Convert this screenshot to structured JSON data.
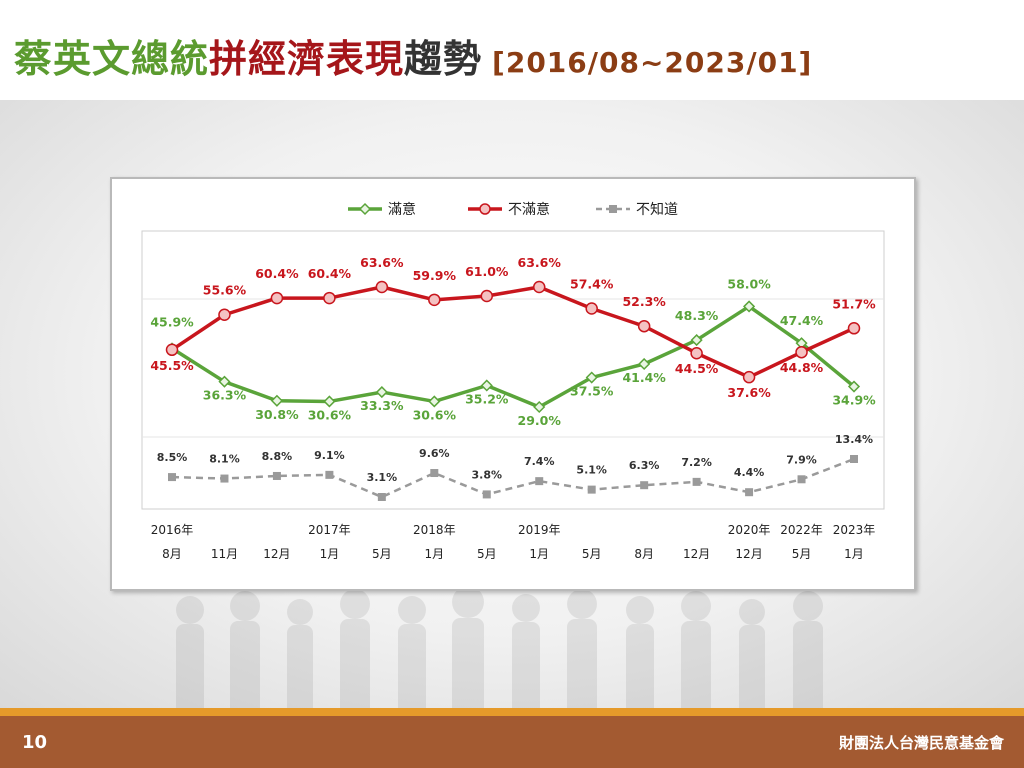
{
  "slide": {
    "title_segments": [
      {
        "text": "蔡英文總統",
        "color": "#5b9b2f"
      },
      {
        "text": "拼經濟表現",
        "color": "#a5161a"
      },
      {
        "text": "趨勢",
        "color": "#333333"
      }
    ],
    "title_range": "[2016/08~2023/01]",
    "page_number": "10",
    "organization": "財團法人台灣民意基金會"
  },
  "chart_data": {
    "type": "line",
    "title": "",
    "xlabel": "",
    "ylabel": "",
    "categories": [
      "2016年8月",
      "11月",
      "12月",
      "2017年1月",
      "5月",
      "2018年1月",
      "5月",
      "2019年1月",
      "5月",
      "8月",
      "12月",
      "2020年12月",
      "2022年5月",
      "2023年1月"
    ],
    "x_labels_year": [
      "2016年",
      "",
      "",
      "2017年",
      "",
      "2018年",
      "",
      "2019年",
      "",
      "",
      "",
      "2020年",
      "2022年",
      "2023年"
    ],
    "x_labels_month": [
      "8月",
      "11月",
      "12月",
      "1月",
      "5月",
      "1月",
      "5月",
      "1月",
      "5月",
      "8月",
      "12月",
      "12月",
      "5月",
      "1月"
    ],
    "series": [
      {
        "name": "滿意",
        "color": "#5aa43a",
        "marker": "diamond",
        "style": "solid",
        "values": [
          45.9,
          36.3,
          30.8,
          30.6,
          33.3,
          30.6,
          35.2,
          29.0,
          37.5,
          41.4,
          48.3,
          58.0,
          47.4,
          34.9
        ],
        "labels": [
          "45.9%",
          "36.3%",
          "30.8%",
          "30.6%",
          "33.3%",
          "30.6%",
          "35.2%",
          "29.0%",
          "37.5%",
          "41.4%",
          "48.3%",
          "58.0%",
          "47.4%",
          "34.9%"
        ]
      },
      {
        "name": "不滿意",
        "color": "#c8161d",
        "marker": "circle",
        "style": "solid",
        "values": [
          45.5,
          55.6,
          60.4,
          60.4,
          63.6,
          59.9,
          61.0,
          63.6,
          57.4,
          52.3,
          44.5,
          37.6,
          44.8,
          51.7
        ],
        "labels": [
          "45.5%",
          "55.6%",
          "60.4%",
          "60.4%",
          "63.6%",
          "59.9%",
          "61.0%",
          "63.6%",
          "57.4%",
          "52.3%",
          "44.5%",
          "37.6%",
          "44.8%",
          "51.7%"
        ]
      },
      {
        "name": "不知道",
        "color": "#9a9a9a",
        "marker": "square",
        "style": "dashed",
        "values": [
          8.5,
          8.1,
          8.8,
          9.1,
          3.1,
          9.6,
          3.8,
          7.4,
          5.1,
          6.3,
          7.2,
          4.4,
          7.9,
          13.4
        ],
        "labels": [
          "8.5%",
          "8.1%",
          "8.8%",
          "9.1%",
          "3.1%",
          "9.6%",
          "3.8%",
          "7.4%",
          "5.1%",
          "6.3%",
          "7.2%",
          "4.4%",
          "7.9%",
          "13.4%"
        ]
      }
    ],
    "legend_position": "top-center",
    "grid": false
  }
}
